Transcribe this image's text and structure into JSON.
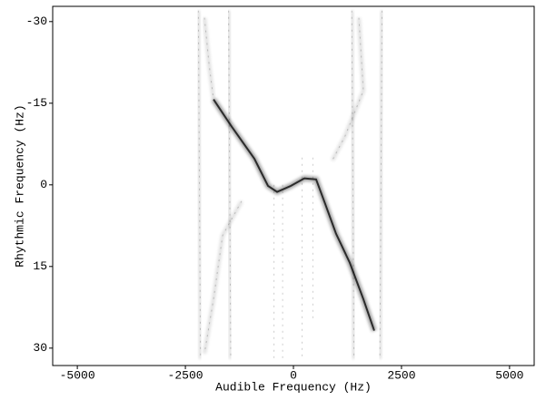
{
  "chart_data": {
    "type": "spectrogram",
    "x_label": "Audible Frequency (Hz)",
    "y_label": "Rhythmic Frequency (Hz)",
    "xlim": [
      -5570,
      5570
    ],
    "xticks": [
      -5000,
      -2500,
      0,
      2500,
      5000
    ],
    "ylim": [
      33.2,
      -32.8
    ],
    "yticks": [
      -30,
      -15,
      0,
      15,
      30
    ],
    "color": "#000000",
    "traces": [
      {
        "x": [
          -1849,
          -1429,
          -903,
          -588,
          -378,
          -63,
          252,
          525,
          735,
          987,
          1303,
          1618,
          1870
        ],
        "y": [
          -15.7,
          -10.7,
          -4.8,
          0.2,
          1.3,
          0.2,
          -1.2,
          -1.0,
          3.5,
          9.0,
          14.3,
          21.0,
          26.8
        ]
      },
      {
        "x": [
          -2059,
          -1950,
          -1849
        ],
        "y": [
          -30.7,
          -22,
          -15.7
        ]
      },
      {
        "x": [
          1513,
          1618,
          1197,
          900
        ],
        "y": [
          -30.7,
          -17.3,
          -9.0,
          -4.5
        ]
      },
      {
        "x": [
          -1200,
          -1639,
          -1849,
          -2059
        ],
        "y": [
          3.0,
          9.3,
          21.0,
          31.0
        ]
      },
      {
        "x": [
          -2200,
          -2150
        ],
        "y": [
          -32,
          32
        ]
      },
      {
        "x": [
          -1500,
          -1450
        ],
        "y": [
          -32,
          32
        ]
      },
      {
        "x": [
          1350,
          1400
        ],
        "y": [
          -32,
          32
        ]
      },
      {
        "x": [
          2050,
          2000
        ],
        "y": [
          -32,
          32
        ]
      },
      {
        "x": [
          -450,
          -450
        ],
        "y": [
          0,
          32
        ]
      },
      {
        "x": [
          -250,
          -250
        ],
        "y": [
          0,
          32
        ]
      },
      {
        "x": [
          200,
          200
        ],
        "y": [
          -5,
          32
        ]
      },
      {
        "x": [
          450,
          450
        ],
        "y": [
          -5,
          25
        ]
      }
    ]
  }
}
